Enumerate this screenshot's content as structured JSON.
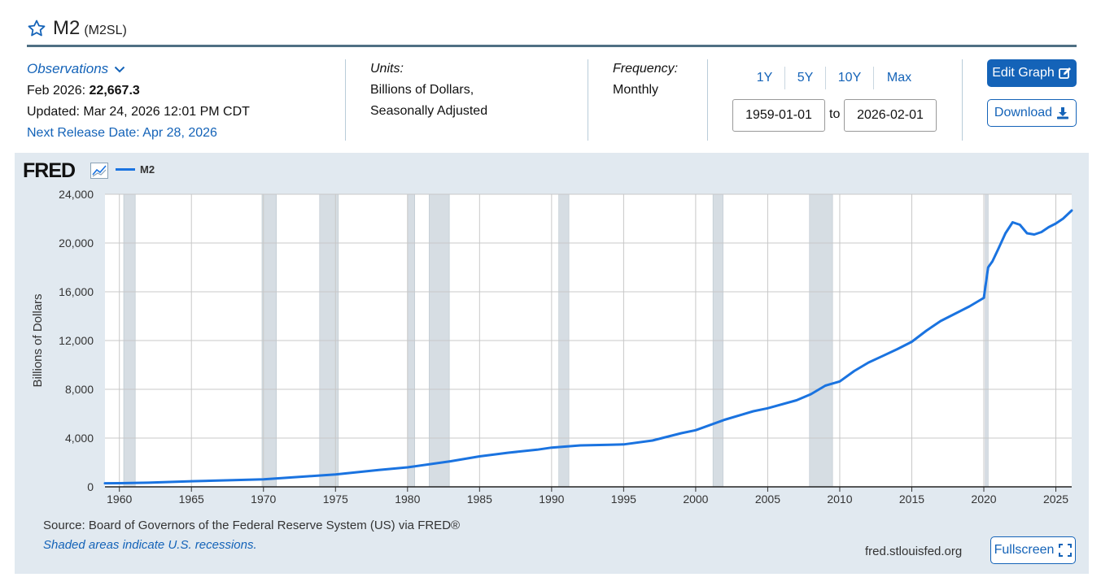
{
  "header": {
    "series_name": "M2",
    "series_id": "(M2SL)"
  },
  "observations": {
    "label": "Observations",
    "date_label": "Feb 2026:",
    "value": "22,667.3",
    "updated": "Updated: Mar 24, 2026 12:01 PM CDT",
    "next_release": "Next Release Date: Apr 28, 2026"
  },
  "units": {
    "label": "Units:",
    "line1": "Billions of Dollars,",
    "line2": "Seasonally Adjusted"
  },
  "frequency": {
    "label": "Frequency:",
    "value": "Monthly"
  },
  "range": {
    "buttons": [
      "1Y",
      "5Y",
      "10Y",
      "Max"
    ],
    "start": "1959-01-01",
    "to": "to",
    "end": "2026-02-01"
  },
  "actions": {
    "edit_graph": "Edit Graph",
    "download": "Download",
    "fullscreen": "Fullscreen"
  },
  "footer": {
    "source": "Source: Board of Governors of the Federal Reserve System (US) via FRED®",
    "shaded_note": "Shaded areas indicate U.S. recessions.",
    "url": "fred.stlouisfed.org"
  },
  "logo": {
    "text": "FRED"
  },
  "colors": {
    "accent": "#1463b8",
    "series": "#1a73e0",
    "recession": "#d6dde3",
    "panel": "#e1e9f0",
    "rule": "#4f6f83"
  },
  "chart_data": {
    "type": "line",
    "title": "",
    "ylabel": "Billions of Dollars",
    "xlabel": "",
    "xlim": [
      1959.0,
      2026.1
    ],
    "ylim": [
      0,
      24000
    ],
    "yticks": [
      0,
      4000,
      8000,
      12000,
      16000,
      20000,
      24000
    ],
    "ytick_labels": [
      "0",
      "4,000",
      "8,000",
      "12,000",
      "16,000",
      "20,000",
      "24,000"
    ],
    "xticks": [
      1960,
      1965,
      1970,
      1975,
      1980,
      1985,
      1990,
      1995,
      2000,
      2005,
      2010,
      2015,
      2020,
      2025
    ],
    "xtick_labels": [
      "1960",
      "1965",
      "1970",
      "1975",
      "1980",
      "1985",
      "1990",
      "1995",
      "2000",
      "2005",
      "2010",
      "2015",
      "2020",
      "2025"
    ],
    "grid": true,
    "legend": "top-left",
    "recessions": [
      [
        1960.3,
        1961.1
      ],
      [
        1969.9,
        1970.9
      ],
      [
        1973.9,
        1975.2
      ],
      [
        1980.0,
        1980.5
      ],
      [
        1981.5,
        1982.9
      ],
      [
        1990.5,
        1991.2
      ],
      [
        2001.2,
        2001.9
      ],
      [
        2007.9,
        2009.5
      ],
      [
        2020.1,
        2020.3
      ]
    ],
    "series": [
      {
        "name": "M2",
        "x": [
          1959,
          1960,
          1962,
          1965,
          1970,
          1973,
          1975,
          1978,
          1980,
          1983,
          1985,
          1987,
          1989,
          1990,
          1992,
          1994,
          1995,
          1997,
          1999,
          2000,
          2002,
          2004,
          2005,
          2007,
          2008,
          2009,
          2010,
          2011,
          2012,
          2013,
          2014,
          2015,
          2016,
          2017,
          2018,
          2019,
          2020.0,
          2020.3,
          2020.6,
          2021.0,
          2021.5,
          2022.0,
          2022.5,
          2023.0,
          2023.5,
          2024.0,
          2024.5,
          2025.0,
          2025.5,
          2026.1
        ],
        "values": [
          290,
          300,
          340,
          460,
          620,
          860,
          1020,
          1380,
          1600,
          2100,
          2500,
          2800,
          3050,
          3220,
          3400,
          3450,
          3480,
          3800,
          4400,
          4650,
          5500,
          6200,
          6450,
          7100,
          7600,
          8300,
          8650,
          9500,
          10200,
          10750,
          11300,
          11900,
          12800,
          13600,
          14200,
          14800,
          15500,
          18000,
          18500,
          19500,
          20800,
          21700,
          21500,
          20800,
          20700,
          20900,
          21300,
          21600,
          22000,
          22667
        ]
      }
    ]
  }
}
